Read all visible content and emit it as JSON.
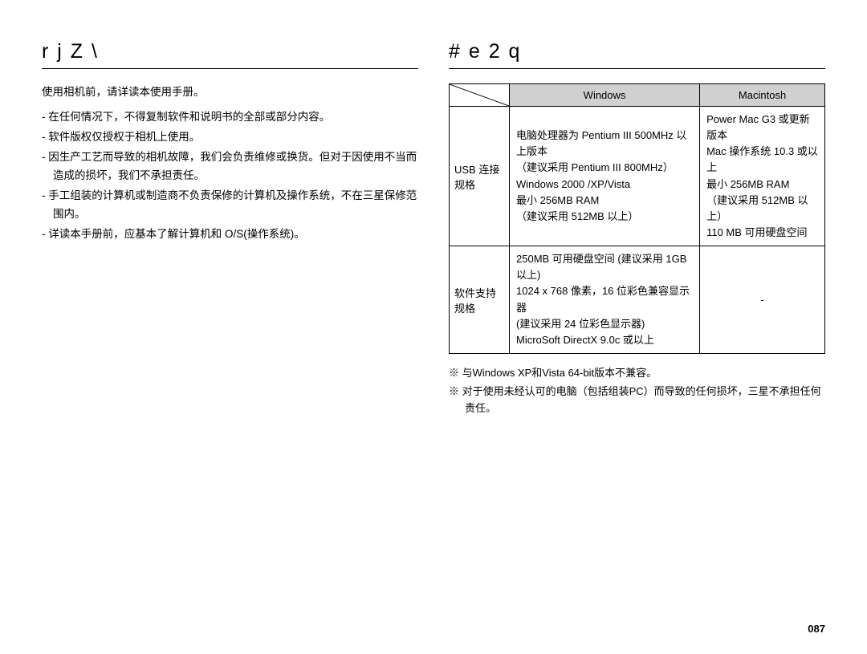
{
  "left": {
    "heading": "r  j Z \\",
    "intro": "使用相机前，请详读本使用手册。",
    "bullets": [
      "- 在任何情况下，不得复制软件和说明书的全部或部分内容。",
      "- 软件版权仅授权于相机上使用。",
      "- 因生产工艺而导致的相机故障，我们会负责维修或换货。但对于因使用不当而造成的损坏，我们不承担责任。",
      "- 手工组装的计算机或制造商不负责保修的计算机及操作系统，不在三星保修范围内。",
      "- 详读本手册前，应基本了解计算机和 O/S(操作系统)。"
    ]
  },
  "right": {
    "heading": "# e 2 q",
    "table": {
      "columns": [
        "Windows",
        "Macintosh"
      ],
      "rows": [
        {
          "label": "USB 连接规格",
          "windows": "电脑处理器为 Pentium III 500MHz 以上版本\n（建议采用 Pentium III 800MHz）\nWindows 2000 /XP/Vista\n最小 256MB RAM\n（建议采用 512MB 以上）",
          "mac": "Power Mac G3 或更新版本\nMac 操作系统 10.3 或以上\n最小 256MB RAM\n（建议采用 512MB 以上）\n110 MB 可用硬盘空间"
        },
        {
          "label": "软件支持规格",
          "windows": "250MB 可用硬盘空间 (建议采用 1GB 以上)\n1024 x 768 像素，16 位彩色兼容显示器\n(建议采用 24 位彩色显示器)\nMicroSoft DirectX 9.0c 或以上",
          "mac": "-"
        }
      ]
    },
    "notes": [
      "※ 与Windows XP和Vista 64-bit版本不兼容。",
      "※ 对于使用未经认可的电脑（包括组装PC）而导致的任何损坏，三星不承担任何责任。"
    ]
  },
  "pageNumber": "087",
  "colors": {
    "header_bg": "#d0d0d0",
    "text": "#000000",
    "background": "#ffffff"
  }
}
